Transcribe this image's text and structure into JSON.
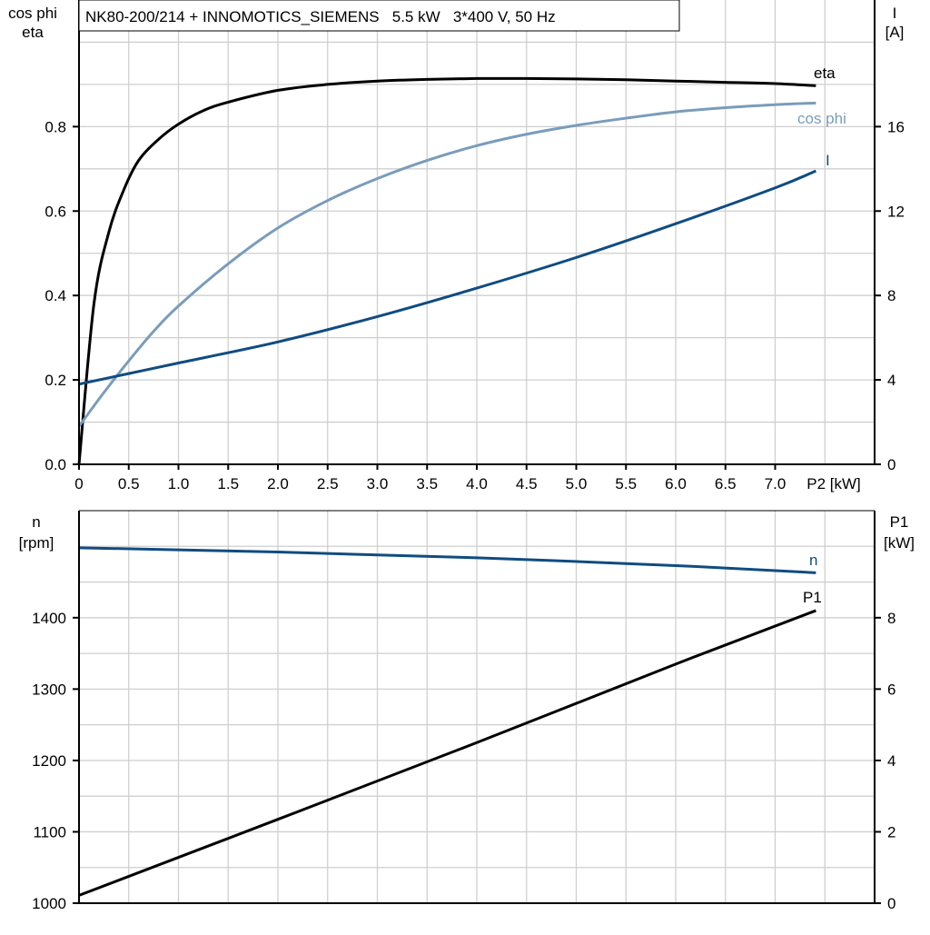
{
  "chart_data": [
    {
      "type": "line",
      "title": "NK80-200/214 + INNOMOTICS_SIEMENS   5.5 kW   3*400 V, 50 Hz",
      "xlabel": "P2 [kW]",
      "ylabel_left": [
        "cos phi",
        "eta"
      ],
      "ylabel_right": [
        "I",
        "[A]"
      ],
      "xlim": [
        0,
        8
      ],
      "ylim_left": [
        0,
        1.1
      ],
      "ylim_right": [
        0,
        22
      ],
      "grid": true,
      "x_ticks": [
        "0",
        "0.5",
        "1.0",
        "1.5",
        "2.0",
        "2.5",
        "3.0",
        "3.5",
        "4.0",
        "4.5",
        "5.0",
        "5.5",
        "6.0",
        "6.5",
        "7.0"
      ],
      "y_ticks_left": [
        "0.0",
        "0.2",
        "0.4",
        "0.6",
        "0.8"
      ],
      "y_ticks_right": [
        "0",
        "4",
        "8",
        "12",
        "16"
      ],
      "series": [
        {
          "name": "eta",
          "axis": "left",
          "color": "#000000",
          "x": [
            0,
            0.15,
            0.3,
            0.45,
            0.6,
            0.8,
            1.0,
            1.25,
            1.5,
            2.0,
            2.5,
            3.0,
            3.5,
            4.0,
            4.5,
            5.0,
            5.5,
            6.0,
            6.5,
            7.0,
            7.41
          ],
          "y": [
            0,
            0.38,
            0.55,
            0.65,
            0.72,
            0.77,
            0.806,
            0.838,
            0.858,
            0.886,
            0.9,
            0.908,
            0.912,
            0.914,
            0.914,
            0.913,
            0.911,
            0.908,
            0.905,
            0.902,
            0.897
          ]
        },
        {
          "name": "cos phi",
          "axis": "left",
          "color": "#7a9cbb",
          "x": [
            0,
            0.25,
            0.5,
            0.75,
            1,
            1.5,
            2,
            2.5,
            3,
            3.5,
            4,
            4.5,
            5,
            5.5,
            6,
            6.5,
            7,
            7.41
          ],
          "y": [
            0.09,
            0.17,
            0.245,
            0.315,
            0.375,
            0.475,
            0.56,
            0.625,
            0.677,
            0.72,
            0.755,
            0.782,
            0.803,
            0.82,
            0.835,
            0.845,
            0.852,
            0.856
          ]
        },
        {
          "name": "I",
          "axis": "right",
          "color": "#0f4c81",
          "x": [
            0,
            0.5,
            1,
            2,
            3,
            4,
            5,
            6,
            7,
            7.41
          ],
          "y": [
            3.8,
            4.3,
            4.8,
            5.8,
            7.0,
            8.35,
            9.8,
            11.4,
            13.1,
            13.9
          ]
        }
      ]
    },
    {
      "type": "line",
      "ylabel_left": [
        "n",
        "[rpm]"
      ],
      "ylabel_right": [
        "P1",
        "[kW]"
      ],
      "xlim": [
        0,
        8
      ],
      "ylim_left": [
        1000,
        1550
      ],
      "ylim_right": [
        0,
        11
      ],
      "grid": true,
      "y_ticks_left": [
        "1000",
        "1100",
        "1200",
        "1300",
        "1400"
      ],
      "y_ticks_right": [
        "0",
        "2",
        "4",
        "6",
        "8"
      ],
      "series": [
        {
          "name": "n",
          "axis": "left",
          "color": "#0f4c81",
          "x": [
            0,
            2,
            4,
            6,
            7.41
          ],
          "y": [
            1498,
            1492,
            1484,
            1473,
            1463
          ]
        },
        {
          "name": "P1",
          "axis": "right",
          "color": "#000000",
          "x": [
            0,
            2,
            4,
            6,
            7.41
          ],
          "y": [
            0.22,
            2.35,
            4.5,
            6.7,
            8.2
          ]
        }
      ]
    }
  ]
}
